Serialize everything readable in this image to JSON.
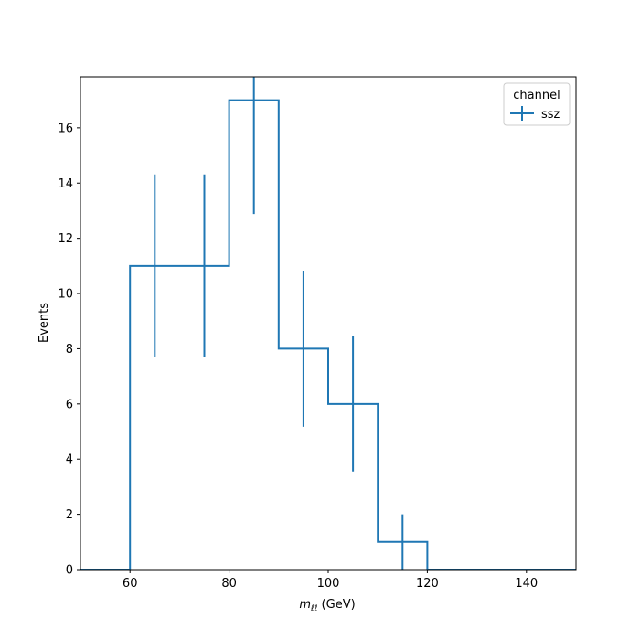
{
  "chart_data": {
    "type": "histogram",
    "xlabel": "m",
    "xlabel_sub": "ℓℓ",
    "xlabel_unit": " (GeV)",
    "ylabel": "Events",
    "xlim": [
      50,
      150
    ],
    "ylim": [
      0,
      17.85
    ],
    "xticks": [
      60,
      80,
      100,
      120,
      140
    ],
    "yticks": [
      0,
      2,
      4,
      6,
      8,
      10,
      12,
      14,
      16
    ],
    "bin_edges": [
      50,
      60,
      70,
      80,
      90,
      100,
      110,
      120,
      130,
      140,
      150
    ],
    "series": [
      {
        "name": "ssz",
        "color": "#1f77b4",
        "counts": [
          0,
          11,
          11,
          17,
          8,
          6,
          1,
          0,
          0,
          0
        ],
        "errors": [
          0,
          3.3166,
          3.3166,
          4.1231,
          2.8284,
          2.4495,
          1,
          0,
          0,
          0
        ]
      }
    ],
    "legend": {
      "title": "channel",
      "placement": "upper right"
    }
  }
}
